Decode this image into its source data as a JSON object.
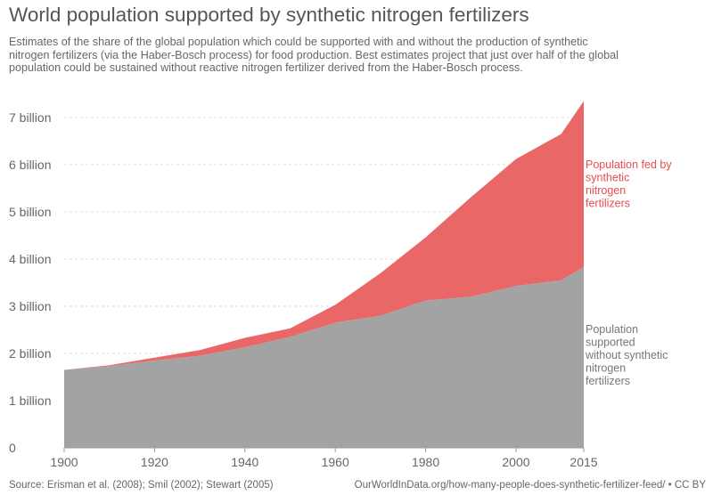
{
  "title": "World population supported by synthetic nitrogen fertilizers",
  "subtitle": "Estimates of the share of the global population which could be supported with and without the production of synthetic nitrogen fertilizers (via the Haber-Bosch process) for food production. Best estimates project that just over half of the global population could be sustained without reactive nitrogen fertilizer derived from the Haber-Bosch process.",
  "source": "Source: Erisman et al. (2008); Smil (2002); Stewart (2005)",
  "url": "OurWorldInData.org/how-many-people-does-synthetic-fertilizer-feed/ • CC BY",
  "chart_data": {
    "type": "area",
    "stacked": true,
    "x": [
      1900,
      1910,
      1920,
      1930,
      1940,
      1950,
      1960,
      1970,
      1980,
      1990,
      2000,
      2010,
      2015
    ],
    "series": [
      {
        "name": "Population supported without synthetic nitrogen fertilizers",
        "color": "#a3a3a3",
        "values": [
          1.65,
          1.73,
          1.85,
          1.95,
          2.13,
          2.35,
          2.65,
          2.8,
          3.12,
          3.2,
          3.43,
          3.55,
          3.83
        ]
      },
      {
        "name": "Population fed by synthetic nitrogen fertilizers",
        "color": "#ea6767",
        "values": [
          0.0,
          0.02,
          0.06,
          0.12,
          0.2,
          0.18,
          0.38,
          0.9,
          1.34,
          2.11,
          2.69,
          3.1,
          3.52
        ]
      }
    ],
    "legend": [
      {
        "lines": [
          "Population fed by",
          "synthetic",
          "nitrogen",
          "fertilizers"
        ],
        "color": "#e84d4d"
      },
      {
        "lines": [
          "Population",
          "supported",
          "without synthetic",
          "nitrogen",
          "fertilizers"
        ],
        "color": "#777777"
      }
    ],
    "y_ticks": [
      0,
      1,
      2,
      3,
      4,
      5,
      6,
      7
    ],
    "y_tick_labels": [
      "0",
      "1 billion",
      "2 billion",
      "3 billion",
      "4 billion",
      "5 billion",
      "6 billion",
      "7 billion"
    ],
    "x_ticks": [
      1900,
      1920,
      1940,
      1960,
      1980,
      2000,
      2015
    ],
    "x_tick_labels": [
      "1900",
      "1920",
      "1940",
      "1960",
      "1980",
      "2000",
      "2015"
    ],
    "xlim": [
      1900,
      2015
    ],
    "ylim": [
      0,
      7.4
    ],
    "grid": "horizontal-dashed",
    "legend_position": "right"
  }
}
